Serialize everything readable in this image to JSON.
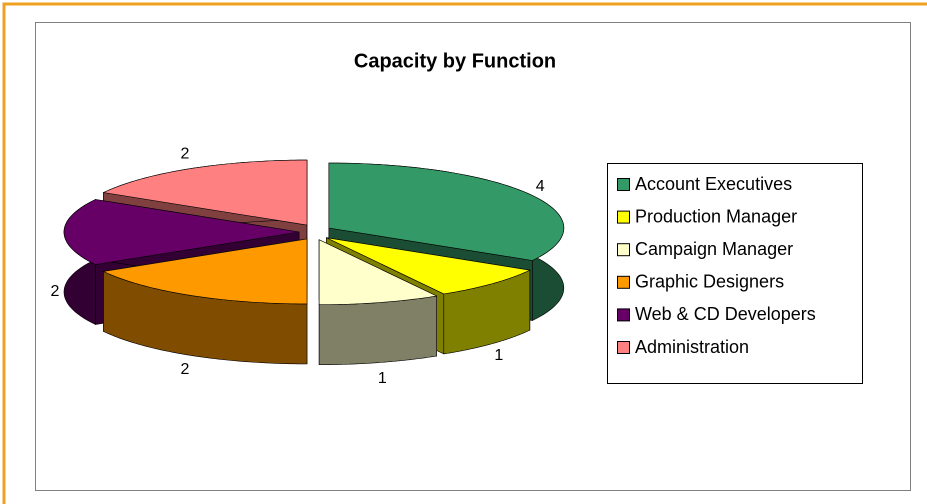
{
  "chart_data": {
    "type": "pie3d",
    "title": "Capacity by Function",
    "categories": [
      "Account Executives",
      "Production Manager",
      "Campaign Manager",
      "Graphic Designers",
      "Web & CD Developers",
      "Administration"
    ],
    "values": [
      4,
      1,
      1,
      2,
      2,
      2
    ],
    "colors": [
      "#339966",
      "#ffff00",
      "#ffffcc",
      "#ff9900",
      "#660066",
      "#ff8080"
    ],
    "legend": "right"
  }
}
